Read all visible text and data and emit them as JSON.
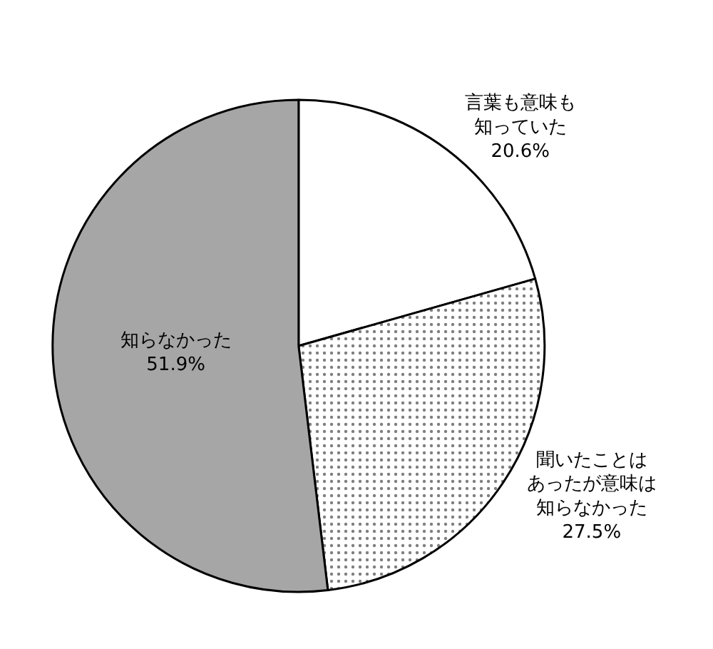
{
  "chart_data": {
    "type": "pie",
    "categories": [
      "言葉も意味も知っていた",
      "聞いたことはあったが意味は知らなかった",
      "知らなかった"
    ],
    "values": [
      20.6,
      27.5,
      51.9
    ],
    "colors": [
      "#ffffff",
      "#000000",
      "#a6a6a6"
    ],
    "value_labels": [
      "20.6%",
      "27.5%",
      "51.9%"
    ],
    "legend": false
  }
}
